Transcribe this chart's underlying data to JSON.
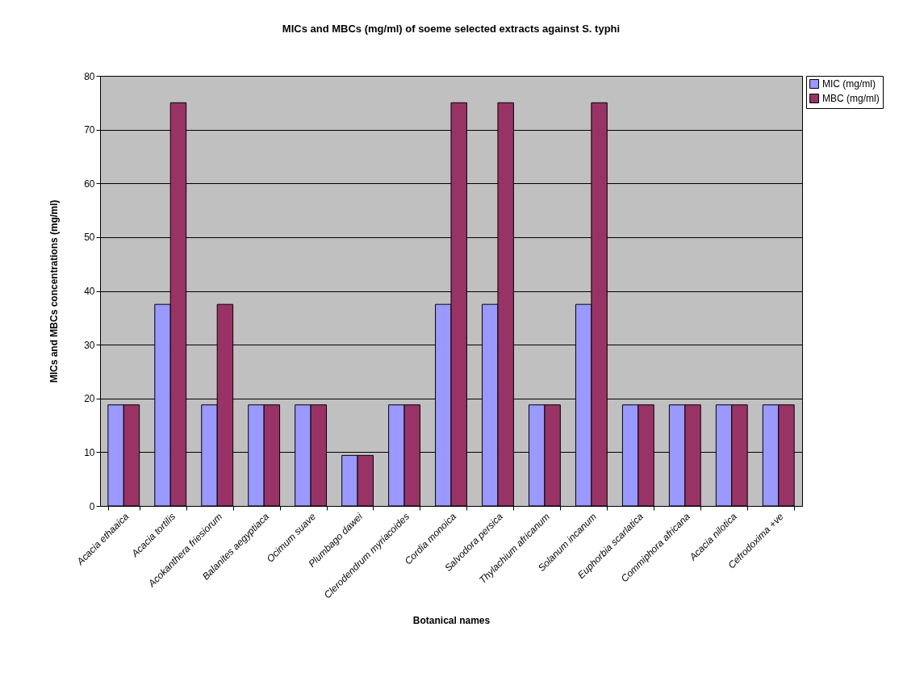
{
  "chart_data": {
    "type": "bar",
    "title": "MICs and MBCs (mg/ml) of soeme selected extracts against S. typhi",
    "xlabel": "Botanical names",
    "ylabel": "MICs and MBCs concentrations (mg/ml)",
    "categories": [
      "Acacia ethaaica",
      "Acacia tortilis",
      "Acokanthera friesiorum",
      "Balanites aegyptiaca",
      "Ocimum suave",
      "Plumbago dawei",
      "Clerodendrum myriacoides",
      "Cordia monoica",
      "Salvodora persica",
      "Thylachium africanum",
      "Solanum incanum",
      "Euphorbia scarlatica",
      "Commiphora africana",
      "Acacia nilotica",
      "Cefrodoxima +ve"
    ],
    "series": [
      {
        "name": "MIC (mg/ml)",
        "color": "#9999ff",
        "values": [
          18.8,
          37.5,
          18.8,
          18.8,
          18.8,
          9.4,
          18.8,
          37.5,
          37.5,
          18.8,
          37.5,
          18.8,
          18.8,
          18.8,
          18.8
        ]
      },
      {
        "name": "MBC (mg/ml)",
        "color": "#993366",
        "values": [
          18.8,
          75,
          37.5,
          18.8,
          18.8,
          9.4,
          18.8,
          75,
          75,
          18.8,
          75,
          18.8,
          18.8,
          18.8,
          18.8
        ]
      }
    ],
    "ylim": [
      0,
      80
    ],
    "yticks": [
      0,
      10,
      20,
      30,
      40,
      50,
      60,
      70,
      80
    ],
    "grid": "y",
    "legend": "right"
  }
}
